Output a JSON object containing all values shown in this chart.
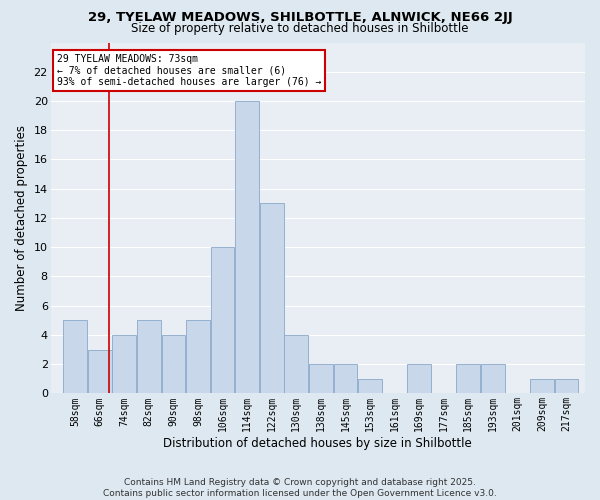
{
  "title1": "29, TYELAW MEADOWS, SHILBOTTLE, ALNWICK, NE66 2JJ",
  "title2": "Size of property relative to detached houses in Shilbottle",
  "xlabel": "Distribution of detached houses by size in Shilbottle",
  "ylabel": "Number of detached properties",
  "categories": [
    "58sqm",
    "66sqm",
    "74sqm",
    "82sqm",
    "90sqm",
    "98sqm",
    "106sqm",
    "114sqm",
    "122sqm",
    "130sqm",
    "138sqm",
    "145sqm",
    "153sqm",
    "161sqm",
    "169sqm",
    "177sqm",
    "185sqm",
    "193sqm",
    "201sqm",
    "209sqm",
    "217sqm"
  ],
  "values": [
    5,
    3,
    4,
    5,
    4,
    5,
    10,
    20,
    13,
    4,
    2,
    2,
    1,
    0,
    2,
    0,
    2,
    2,
    0,
    1,
    1
  ],
  "bar_color": "#c8d8ea",
  "bar_edge_color": "#8aa8c8",
  "property_line_x": 73,
  "annotation_text": "29 TYELAW MEADOWS: 73sqm\n← 7% of detached houses are smaller (6)\n93% of semi-detached houses are larger (76) →",
  "annotation_box_color": "#ffffff",
  "annotation_box_edge": "#cc0000",
  "vline_color": "#cc0000",
  "ylim": [
    0,
    24
  ],
  "yticks": [
    0,
    2,
    4,
    6,
    8,
    10,
    12,
    14,
    16,
    18,
    20,
    22
  ],
  "footer": "Contains HM Land Registry data © Crown copyright and database right 2025.\nContains public sector information licensed under the Open Government Licence v3.0.",
  "bg_color": "#dde8f0",
  "plot_bg_color": "#e8eef4",
  "grid_color": "#ffffff",
  "title1_fontsize": 9.5,
  "title2_fontsize": 8.5,
  "bin_width": 8
}
